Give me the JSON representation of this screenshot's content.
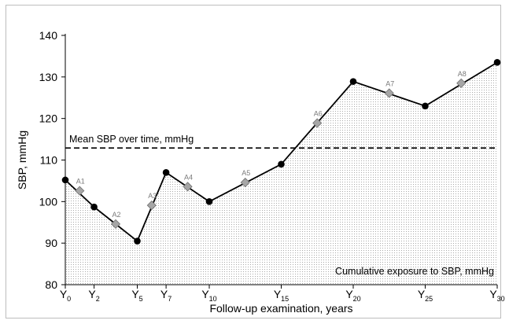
{
  "chart_data": {
    "type": "line",
    "xlabel": "Follow-up examination, years",
    "ylabel": "SBP, mmHg",
    "ylim": [
      80,
      140
    ],
    "xlim": [
      0,
      30
    ],
    "yticks": [
      80,
      90,
      100,
      110,
      120,
      130,
      140
    ],
    "xticks": [
      {
        "x": 0,
        "base": "Y",
        "sub": "0"
      },
      {
        "x": 2,
        "base": "Y",
        "sub": "2"
      },
      {
        "x": 5,
        "base": "Y",
        "sub": "5"
      },
      {
        "x": 7,
        "base": "Y",
        "sub": "7"
      },
      {
        "x": 10,
        "base": "Y",
        "sub": "10"
      },
      {
        "x": 15,
        "base": "Y",
        "sub": "15"
      },
      {
        "x": 20,
        "base": "Y",
        "sub": "20"
      },
      {
        "x": 25,
        "base": "Y",
        "sub": "25"
      },
      {
        "x": 30,
        "base": "Y",
        "sub": "30"
      }
    ],
    "series": [
      {
        "values": [
          {
            "x": 0,
            "y": 105.2
          },
          {
            "x": 2,
            "y": 98.7
          },
          {
            "x": 5,
            "y": 90.5
          },
          {
            "x": 7,
            "y": 107.0
          },
          {
            "x": 10,
            "y": 100.0
          },
          {
            "x": 15,
            "y": 109.0
          },
          {
            "x": 20,
            "y": 128.9
          },
          {
            "x": 25,
            "y": 123.0
          },
          {
            "x": 30,
            "y": 133.5
          }
        ]
      }
    ],
    "area_segments": [
      {
        "label": "A1",
        "x": 1,
        "y": 102.6
      },
      {
        "label": "A2",
        "x": 3.5,
        "y": 94.6
      },
      {
        "label": "A3",
        "x": 6,
        "y": 99.1
      },
      {
        "label": "A4",
        "x": 8.5,
        "y": 103.6
      },
      {
        "label": "A5",
        "x": 12.5,
        "y": 104.6
      },
      {
        "label": "A6",
        "x": 17.5,
        "y": 118.9
      },
      {
        "label": "A7",
        "x": 22.5,
        "y": 126.1
      },
      {
        "label": "A8",
        "x": 27.5,
        "y": 128.5
      }
    ],
    "mean_line": {
      "y": 112.9,
      "label": "Mean SBP over time, mmHg"
    },
    "area_label": "Cumulative exposure to SBP, mmHg",
    "colors": {
      "line": "#000000",
      "marker_fill": "#000000",
      "diamond_fill": "#a6a6a6",
      "area_dots": "#b0b0b0"
    }
  }
}
